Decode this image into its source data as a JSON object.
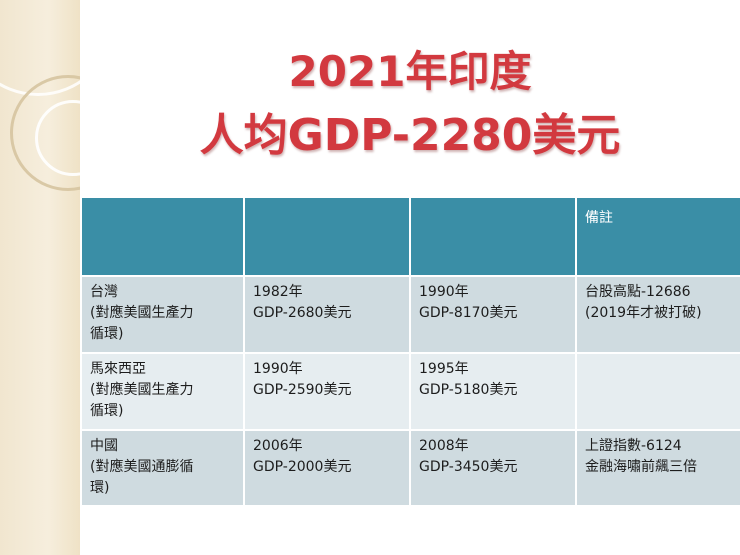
{
  "title": {
    "line1": "2021年印度",
    "line2": "人均GDP-2280美元"
  },
  "table": {
    "headers": [
      "",
      "",
      "",
      "備註"
    ],
    "rows": [
      {
        "country": [
          "台灣",
          "(對應美國生產力",
          "循環)"
        ],
        "period1": [
          "1982年",
          "GDP-2680美元"
        ],
        "period2": [
          "1990年",
          "GDP-8170美元"
        ],
        "note": [
          "台股高點-12686",
          "(2019年才被打破)"
        ]
      },
      {
        "country": [
          "馬來西亞",
          "(對應美國生產力",
          "循環)"
        ],
        "period1": [
          "1990年",
          "GDP-2590美元"
        ],
        "period2": [
          "1995年",
          "GDP-5180美元"
        ],
        "note": [
          "",
          ""
        ]
      },
      {
        "country": [
          "中國",
          "(對應美國通膨循",
          "環)"
        ],
        "period1": [
          "2006年",
          "GDP-2000美元"
        ],
        "period2": [
          "2008年",
          "GDP-3450美元"
        ],
        "note": [
          "上證指數-6124",
          "金融海嘯前飆三倍"
        ]
      }
    ]
  }
}
